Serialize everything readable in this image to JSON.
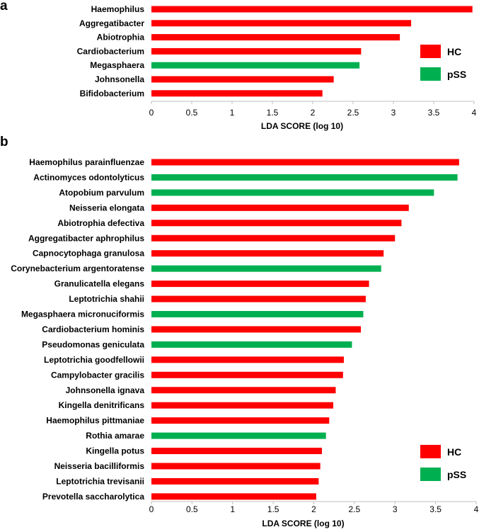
{
  "colors": {
    "HC": "#ff0000",
    "pSS": "#00b050"
  },
  "chart_data": [
    {
      "panel": "a",
      "type": "bar",
      "orientation": "horizontal",
      "xlabel": "LDA  SCORE (log 10)",
      "xlim": [
        0,
        4
      ],
      "xticks": [
        "0",
        "0.5",
        "1",
        "1.5",
        "2",
        "2.5",
        "3",
        "3.5",
        "4"
      ],
      "legend": [
        {
          "label": "HC",
          "group": "HC"
        },
        {
          "label": "pSS",
          "group": "pSS"
        }
      ],
      "categories": [
        "Haemophilus",
        "Aggregatibacter",
        "Abiotrophia",
        "Cardiobacterium",
        "Megasphaera",
        "Johnsonella",
        "Bifidobacterium"
      ],
      "values": [
        3.98,
        3.22,
        3.08,
        2.6,
        2.58,
        2.26,
        2.12
      ],
      "groups": [
        "HC",
        "HC",
        "HC",
        "HC",
        "pSS",
        "HC",
        "HC"
      ]
    },
    {
      "panel": "b",
      "type": "bar",
      "orientation": "horizontal",
      "xlabel": "LDA  SCORE (log 10)",
      "xlim": [
        0,
        4
      ],
      "xticks": [
        "0",
        "0.5",
        "1",
        "1.5",
        "2",
        "2.5",
        "3",
        "3.5",
        "4"
      ],
      "legend": [
        {
          "label": "HC",
          "group": "HC"
        },
        {
          "label": "pSS",
          "group": "pSS"
        }
      ],
      "categories": [
        "Haemophilus parainfluenzae",
        "Actinomyces odontolyticus",
        "Atopobium parvulum",
        "Neisseria elongata",
        "Abiotrophia defectiva",
        "Aggregatibacter aphrophilus",
        "Capnocytophaga granulosa",
        "Corynebacterium argentoratense",
        "Granulicatella elegans",
        "Leptotrichia shahii",
        "Megasphaera micronuciformis",
        "Cardiobacterium hominis",
        "Pseudomonas geniculata",
        "Leptotrichia goodfellowii",
        "Campylobacter gracilis",
        "Johnsonella ignava",
        "Kingella denitrificans",
        "Haemophilus pittmaniae",
        "Rothia amarae",
        "Kingella potus",
        "Neisseria bacilliformis",
        "Leptotrichia trevisanii",
        "Prevotella saccharolytica"
      ],
      "values": [
        3.79,
        3.77,
        3.48,
        3.17,
        3.08,
        3.0,
        2.86,
        2.83,
        2.68,
        2.64,
        2.61,
        2.58,
        2.47,
        2.37,
        2.36,
        2.27,
        2.24,
        2.19,
        2.15,
        2.1,
        2.08,
        2.06,
        2.03
      ],
      "groups": [
        "HC",
        "pSS",
        "pSS",
        "HC",
        "HC",
        "HC",
        "HC",
        "pSS",
        "HC",
        "HC",
        "pSS",
        "HC",
        "pSS",
        "HC",
        "HC",
        "HC",
        "HC",
        "HC",
        "pSS",
        "HC",
        "HC",
        "HC",
        "HC"
      ]
    }
  ]
}
